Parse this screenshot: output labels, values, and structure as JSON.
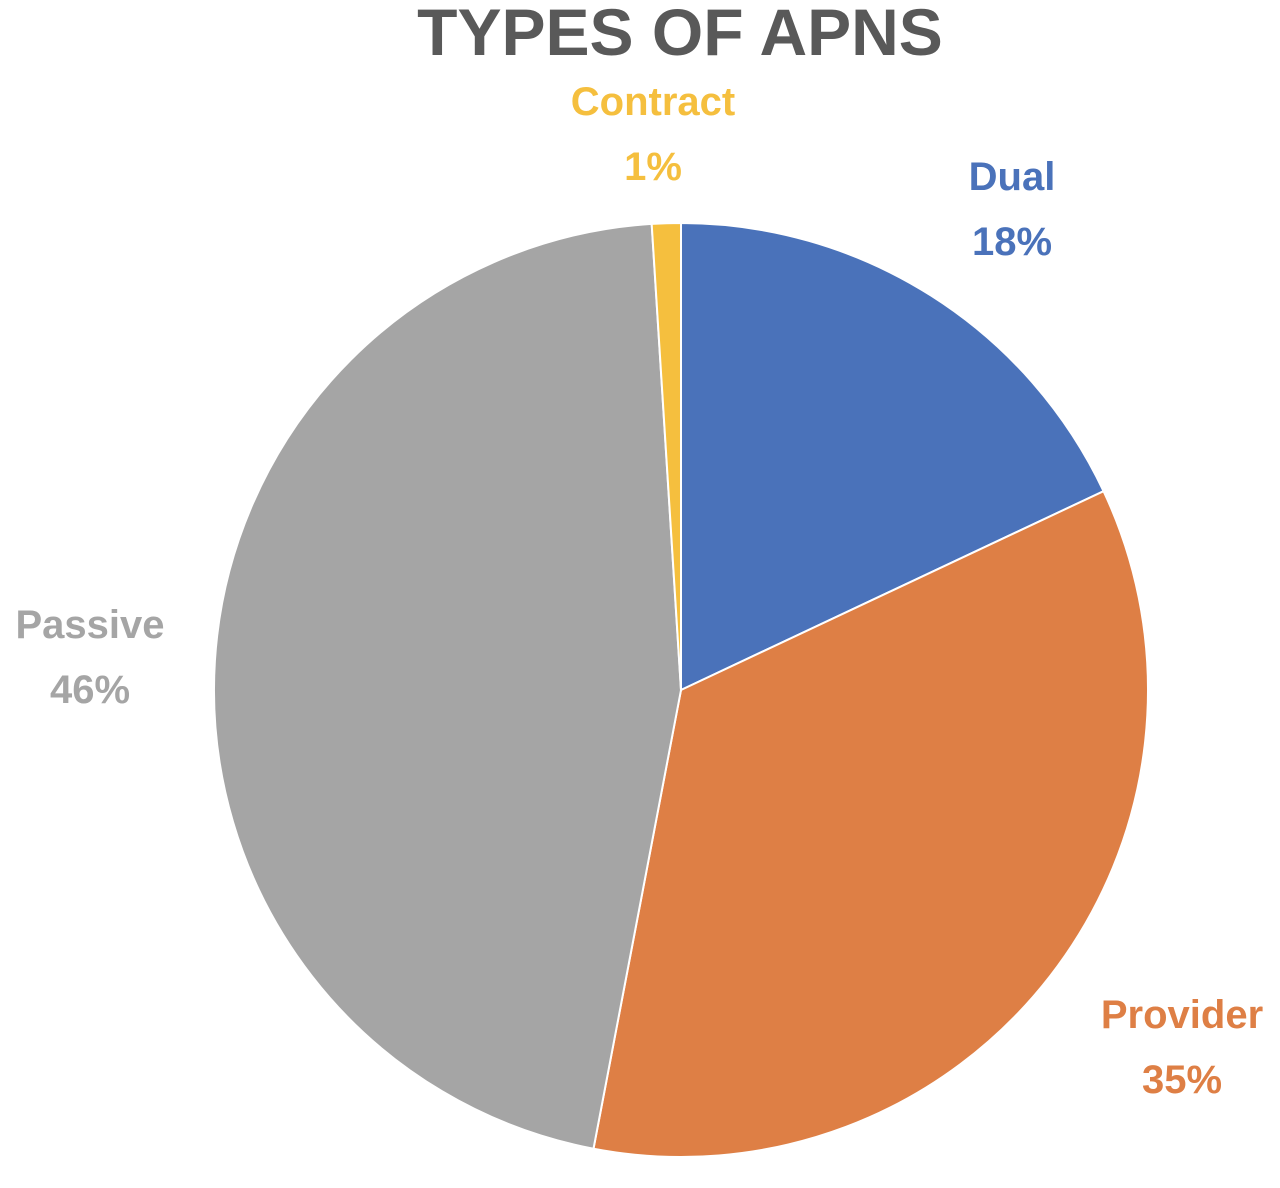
{
  "chart_data": {
    "type": "pie",
    "title": "TYPES OF APNS",
    "slices": [
      {
        "label": "Dual",
        "percent_label": "18%",
        "value": 18,
        "color": "#4A72BA"
      },
      {
        "label": "Provider",
        "percent_label": "35%",
        "value": 35,
        "color": "#DE7F45"
      },
      {
        "label": "Passive",
        "percent_label": "46%",
        "value": 46,
        "color": "#A5A5A5"
      },
      {
        "label": "Contract",
        "percent_label": "1%",
        "value": 1,
        "color": "#F5BF3E"
      }
    ],
    "start_angle": "12 o'clock",
    "direction": "clockwise",
    "legend": "none"
  }
}
